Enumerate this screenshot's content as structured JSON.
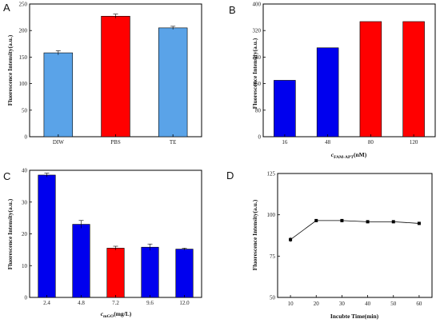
{
  "panels": {
    "a": "A",
    "b": "B",
    "c": "C",
    "d": "D"
  },
  "chart_data": [
    {
      "type": "bar",
      "categories": [
        "DIW",
        "PBS",
        "TE"
      ],
      "values": [
        158,
        227,
        205
      ],
      "errors": [
        4,
        4,
        3
      ],
      "colors": [
        "#5aa3e8",
        "#ff0000",
        "#5aa3e8"
      ],
      "ylabel": "Fluorescence Intensity(a.u.)",
      "xlabel": "",
      "ylim": [
        0,
        250
      ],
      "yticks": [
        0,
        50,
        100,
        150,
        200,
        250
      ]
    },
    {
      "type": "bar",
      "categories": [
        "16",
        "48",
        "80",
        "120"
      ],
      "values": [
        170,
        268,
        347,
        347
      ],
      "colors": [
        "#0000ee",
        "#0000ee",
        "#ff0000",
        "#ff0000"
      ],
      "ylabel": "Fluorescence Intensity(a.u.)",
      "xlabel": "cFAM-APT(nM)",
      "xlabel_parts": {
        "sym": "c",
        "sub": "FAM-APT",
        "unit": "(nM)"
      },
      "ylim": [
        0,
        400
      ],
      "yticks": [
        0,
        80,
        160,
        240,
        320,
        400
      ]
    },
    {
      "type": "bar",
      "categories": [
        "2.4",
        "4.8",
        "7.2",
        "9.6",
        "12.0"
      ],
      "values": [
        38.5,
        23,
        15.5,
        15.8,
        15.2
      ],
      "errors": [
        0.6,
        1.2,
        0.6,
        1.0,
        0.3
      ],
      "colors": [
        "#0000ee",
        "#0000ee",
        "#ff0000",
        "#0000ee",
        "#0000ee"
      ],
      "ylabel": "Fluorescence Intensity(a.u.)",
      "xlabel": "cmGO(mg/L)",
      "xlabel_parts": {
        "sym": "c",
        "sub": "mGO",
        "unit": "(mg/L)"
      },
      "ylim": [
        0,
        40
      ],
      "yticks": [
        0,
        10,
        20,
        30,
        40
      ]
    },
    {
      "type": "line",
      "x": [
        10,
        20,
        30,
        40,
        50,
        60
      ],
      "values": [
        85,
        96.5,
        96.5,
        95.8,
        95.8,
        94.8
      ],
      "errors": [
        1.5,
        0.8,
        0.8,
        0.6,
        0.6,
        0.6
      ],
      "ylabel": "Fluorescence Intensity(a.u.)",
      "xlabel": "Incubte Time(min)",
      "xlim": [
        5,
        65
      ],
      "xticks": [
        10,
        20,
        30,
        40,
        50,
        60
      ],
      "ylim": [
        50,
        125
      ],
      "yticks": [
        50,
        75,
        100,
        125
      ]
    }
  ]
}
